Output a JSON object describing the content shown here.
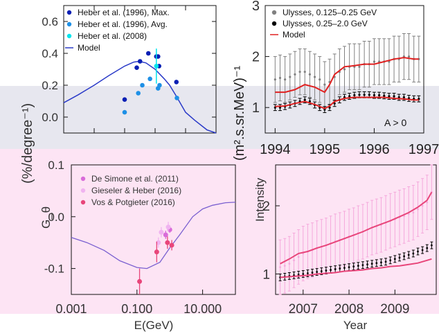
{
  "chart_data": [
    {
      "id": "top_left",
      "type": "scatter",
      "xscale": "log",
      "xlim": [
        0.001,
        100
      ],
      "ylim": [
        -0.1,
        0.7
      ],
      "yticks": [
        "0.0",
        "0.2",
        "0.4",
        "0.6"
      ],
      "legend": [
        {
          "label": "Heber et al. (1996), Max.",
          "color": "#0a1fb4",
          "marker": "dot"
        },
        {
          "label": "Heber et al. (1996), Avg.",
          "color": "#1e90e6",
          "marker": "dot"
        },
        {
          "label": "Heber et al. (2008)",
          "color": "#00e5ee",
          "marker": "dot"
        },
        {
          "label": "Model",
          "color": "#2a3ac8",
          "marker": "line"
        }
      ],
      "series": [
        {
          "name": "Heber et al. (1996), Max.",
          "color": "#0a1fb4",
          "x": [
            0.1,
            0.25,
            0.32,
            0.6,
            1.1,
            1.25,
            1.35,
            5.0
          ],
          "y": [
            0.11,
            0.31,
            0.35,
            0.4,
            0.38,
            0.38,
            0.32,
            0.22
          ]
        },
        {
          "name": "Heber et al. (1996), Avg.",
          "color": "#1e90e6",
          "x": [
            0.1,
            0.28,
            0.38,
            0.68,
            1.25,
            1.4,
            5.2
          ],
          "y": [
            0.03,
            0.15,
            0.2,
            0.24,
            0.18,
            0.2,
            0.12
          ]
        },
        {
          "name": "Heber et al. (2008)",
          "color": "#00e5ee",
          "x": [
            1.1
          ],
          "y": [
            0.32
          ],
          "err": [
            0.11
          ]
        }
      ],
      "model": {
        "x": [
          0.001,
          0.003,
          0.01,
          0.03,
          0.1,
          0.2,
          0.3,
          0.5,
          1,
          2,
          3,
          5,
          10,
          20,
          50,
          100
        ],
        "y": [
          0.09,
          0.14,
          0.2,
          0.26,
          0.32,
          0.345,
          0.35,
          0.34,
          0.3,
          0.24,
          0.2,
          0.13,
          0.03,
          -0.02,
          -0.08,
          -0.1
        ]
      }
    },
    {
      "id": "top_right",
      "type": "line",
      "xlim": [
        1993.8,
        1997.0
      ],
      "ylim": [
        0.5,
        3.0
      ],
      "xticks": [
        "1994",
        "1995",
        "1996",
        "1997"
      ],
      "yticks": [
        "1",
        "2",
        "3"
      ],
      "ylabel": "(m².s.sr.MeV)⁻¹",
      "annotation": "A > 0",
      "legend": [
        {
          "label": "Ulysses, 0.125–0.25 GeV",
          "color": "#808080",
          "marker": "dot"
        },
        {
          "label": "Ulysses, 0.25–2.0 GeV",
          "color": "#000000",
          "marker": "dot"
        },
        {
          "label": "Model",
          "color": "#e02020",
          "marker": "line"
        }
      ],
      "series": [
        {
          "name": "Ulysses, 0.125–0.25 GeV",
          "color": "#808080",
          "x": [
            1994.0,
            1994.1,
            1994.2,
            1994.3,
            1994.4,
            1994.5,
            1994.6,
            1994.7,
            1994.8,
            1994.9,
            1995.0,
            1995.1,
            1995.2,
            1995.3,
            1995.4,
            1995.5,
            1995.6,
            1995.7,
            1995.8,
            1995.9,
            1996.0,
            1996.1,
            1996.2,
            1996.3,
            1996.4,
            1996.5,
            1996.6,
            1996.7,
            1996.8,
            1996.9
          ],
          "y": [
            1.55,
            1.58,
            1.55,
            1.6,
            1.65,
            1.7,
            1.7,
            1.65,
            1.6,
            1.55,
            1.45,
            1.5,
            1.6,
            1.7,
            1.75,
            1.8,
            1.8,
            1.8,
            1.85,
            1.85,
            1.9,
            1.9,
            1.9,
            1.9,
            1.95,
            1.95,
            2.0,
            2.0,
            1.95,
            1.95
          ],
          "err": 0.45
        },
        {
          "name": "Ulysses, 0.25–2.0 GeV",
          "color": "#000000",
          "x": [
            1994.0,
            1994.1,
            1994.2,
            1994.3,
            1994.4,
            1994.5,
            1994.6,
            1994.7,
            1994.8,
            1994.9,
            1995.0,
            1995.1,
            1995.2,
            1995.3,
            1995.4,
            1995.5,
            1995.6,
            1995.7,
            1995.8,
            1995.9,
            1996.0,
            1996.1,
            1996.2,
            1996.3,
            1996.4,
            1996.5,
            1996.6,
            1996.7,
            1996.8,
            1996.9
          ],
          "y": [
            1.0,
            1.0,
            1.02,
            1.05,
            1.08,
            1.12,
            1.15,
            1.12,
            1.05,
            1.0,
            0.96,
            1.0,
            1.08,
            1.15,
            1.2,
            1.22,
            1.24,
            1.25,
            1.25,
            1.25,
            1.24,
            1.24,
            1.23,
            1.22,
            1.22,
            1.2,
            1.2,
            1.18,
            1.17,
            1.17
          ],
          "err": 0.06
        }
      ],
      "models": [
        {
          "color": "#e02020",
          "x": [
            1994.0,
            1994.2,
            1994.4,
            1994.6,
            1994.8,
            1995.0,
            1995.1,
            1995.2,
            1995.4,
            1995.6,
            1995.8,
            1996.0,
            1996.2,
            1996.4,
            1996.6,
            1996.8,
            1996.9
          ],
          "y": [
            1.3,
            1.3,
            1.35,
            1.45,
            1.4,
            1.3,
            1.45,
            1.65,
            1.8,
            1.82,
            1.85,
            1.85,
            1.9,
            1.95,
            1.98,
            1.95,
            1.95
          ]
        },
        {
          "color": "#e02020",
          "x": [
            1994.0,
            1994.2,
            1994.4,
            1994.6,
            1994.8,
            1995.0,
            1995.1,
            1995.2,
            1995.4,
            1995.6,
            1995.8,
            1996.0,
            1996.2,
            1996.4,
            1996.6,
            1996.8,
            1996.9
          ],
          "y": [
            1.02,
            1.03,
            1.08,
            1.12,
            1.06,
            0.98,
            1.03,
            1.12,
            1.18,
            1.2,
            1.2,
            1.2,
            1.2,
            1.18,
            1.17,
            1.15,
            1.15
          ]
        }
      ]
    },
    {
      "id": "bottom_left",
      "type": "scatter",
      "xscale": "log",
      "xlim": [
        0.001,
        100
      ],
      "ylim": [
        -0.15,
        0.1
      ],
      "xticks": [
        "0.001",
        "0.100",
        "10.000"
      ],
      "yticks": [
        "0.1",
        "0.0",
        "-0.1"
      ],
      "xlabel": "E(GeV)",
      "ylabel": "G_θ",
      "legend": [
        {
          "label": "De Simone et al. (2011)",
          "color": "#d96bd9",
          "marker": "dot"
        },
        {
          "label": "Gieseler & Heber (2016)",
          "color": "#f0b3f0",
          "marker": "dot"
        },
        {
          "label": "Vos & Potgieter (2016)",
          "color": "#e8457a",
          "marker": "dot"
        }
      ],
      "series": [
        {
          "name": "De Simone et al. (2011)",
          "color": "#d96bd9",
          "x": [
            0.75,
            1.0
          ],
          "y": [
            -0.035,
            -0.025
          ],
          "err": [
            0.008,
            0.006
          ]
        },
        {
          "name": "Gieseler & Heber (2016)",
          "color": "#f0b3f0",
          "x": [
            0.45,
            0.55,
            0.9
          ],
          "y": [
            -0.05,
            -0.03,
            -0.02
          ],
          "err": [
            0.01,
            0.01,
            0.01
          ]
        },
        {
          "name": "Vos & Potgieter (2016)",
          "color": "#e8457a",
          "x": [
            0.12,
            0.4,
            0.85,
            1.15
          ],
          "y": [
            -0.125,
            -0.068,
            -0.05,
            -0.055
          ],
          "err": [
            0.025,
            0.02,
            0.012,
            0.01
          ]
        }
      ],
      "model": {
        "x": [
          0.001,
          0.003,
          0.01,
          0.03,
          0.1,
          0.2,
          0.5,
          1,
          2,
          5,
          10,
          20,
          50,
          100
        ],
        "y": [
          -0.04,
          -0.05,
          -0.065,
          -0.085,
          -0.098,
          -0.1,
          -0.088,
          -0.06,
          -0.035,
          0.0,
          0.015,
          0.022,
          0.027,
          0.028
        ]
      }
    },
    {
      "id": "bottom_right",
      "type": "line",
      "xlim": [
        2006.4,
        2009.9
      ],
      "ylim": [
        0.7,
        2.6
      ],
      "xticks": [
        "2007",
        "2008",
        "2009"
      ],
      "yticks": [
        "1",
        "2"
      ],
      "xlabel": "Year",
      "ylabel": "Intensity",
      "series": [
        {
          "name": "upper_data",
          "color": "#f5a8dc",
          "x": [
            2006.5,
            2006.6,
            2006.7,
            2006.8,
            2006.9,
            2007.0,
            2007.1,
            2007.2,
            2007.3,
            2007.4,
            2007.5,
            2007.6,
            2007.7,
            2007.8,
            2007.9,
            2008.0,
            2008.1,
            2008.2,
            2008.3,
            2008.4,
            2008.5,
            2008.6,
            2008.7,
            2008.8,
            2008.9,
            2009.0,
            2009.1,
            2009.2,
            2009.3,
            2009.4,
            2009.5,
            2009.6,
            2009.7,
            2009.8
          ],
          "y": [
            1.1,
            1.12,
            1.15,
            1.2,
            1.25,
            1.3,
            1.33,
            1.35,
            1.38,
            1.4,
            1.42,
            1.45,
            1.48,
            1.5,
            1.52,
            1.55,
            1.57,
            1.6,
            1.62,
            1.65,
            1.68,
            1.7,
            1.72,
            1.75,
            1.78,
            1.8,
            1.83,
            1.85,
            1.88,
            1.9,
            1.95,
            2.0,
            2.05,
            2.2
          ],
          "err": 0.4
        },
        {
          "name": "lower_data",
          "color": "#000000",
          "x": [
            2006.5,
            2006.6,
            2006.7,
            2006.8,
            2006.9,
            2007.0,
            2007.1,
            2007.2,
            2007.3,
            2007.4,
            2007.5,
            2007.6,
            2007.7,
            2007.8,
            2007.9,
            2008.0,
            2008.1,
            2008.2,
            2008.3,
            2008.4,
            2008.5,
            2008.6,
            2008.7,
            2008.8,
            2008.9,
            2009.0,
            2009.1,
            2009.2,
            2009.3,
            2009.4,
            2009.5,
            2009.6,
            2009.7,
            2009.8
          ],
          "y": [
            0.95,
            0.96,
            0.97,
            0.98,
            0.99,
            1.0,
            1.01,
            1.02,
            1.03,
            1.04,
            1.05,
            1.06,
            1.07,
            1.08,
            1.09,
            1.1,
            1.11,
            1.12,
            1.13,
            1.14,
            1.15,
            1.16,
            1.17,
            1.18,
            1.2,
            1.22,
            1.24,
            1.26,
            1.28,
            1.3,
            1.33,
            1.35,
            1.38,
            1.42
          ],
          "err": 0.05
        }
      ],
      "models": [
        {
          "color": "#e8457a",
          "x": [
            2006.5,
            2006.7,
            2006.9,
            2007.1,
            2007.3,
            2007.5,
            2007.7,
            2007.9,
            2008.1,
            2008.3,
            2008.5,
            2008.7,
            2008.9,
            2009.1,
            2009.3,
            2009.5,
            2009.7,
            2009.8
          ],
          "y": [
            1.15,
            1.22,
            1.3,
            1.33,
            1.38,
            1.42,
            1.47,
            1.52,
            1.57,
            1.62,
            1.68,
            1.73,
            1.78,
            1.84,
            1.9,
            1.98,
            2.08,
            2.2
          ]
        },
        {
          "color": "#e8457a",
          "x": [
            2006.5,
            2006.7,
            2006.9,
            2007.1,
            2007.3,
            2007.5,
            2007.7,
            2007.9,
            2008.1,
            2008.3,
            2008.5,
            2008.7,
            2008.9,
            2009.1,
            2009.3,
            2009.5,
            2009.7,
            2009.8
          ],
          "y": [
            0.95,
            0.96,
            0.97,
            0.98,
            1.0,
            1.01,
            1.02,
            1.04,
            1.05,
            1.06,
            1.08,
            1.09,
            1.11,
            1.12,
            1.14,
            1.16,
            1.2,
            1.22
          ]
        }
      ]
    }
  ],
  "labels": {
    "left_ylabel": "(%/degree⁻¹)",
    "right_ylabel": "(m².s.sr.MeV)⁻¹"
  }
}
